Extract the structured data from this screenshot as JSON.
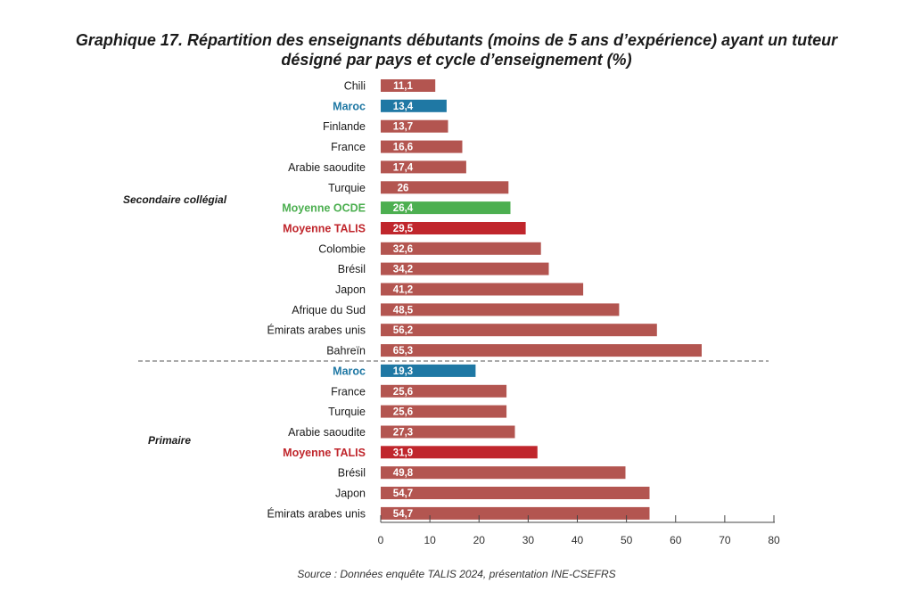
{
  "chart_data": {
    "type": "bar",
    "orientation": "horizontal",
    "title_line1": "Graphique 17. Répartition des enseignants débutants (moins de 5 ans d’expérience) ayant un tuteur",
    "title_line2": "désigné par pays et cycle d’enseignement (%)",
    "source": "Source : Données enquête TALIS 2024, présentation INE-CSEFRS",
    "xlim": [
      0,
      80
    ],
    "xticks": [
      0,
      10,
      20,
      30,
      40,
      50,
      60,
      70,
      80
    ],
    "grid": false,
    "colors": {
      "default": "#b35550",
      "maroc": "#1f78a4",
      "oecd": "#4caf50",
      "talis": "#c0262c",
      "label_default": "#1a1a1a"
    },
    "groups": [
      {
        "name": "Secondaire collégial",
        "bars": [
          {
            "label": "Chili",
            "value": 11.1,
            "value_label": "11,1",
            "kind": "default"
          },
          {
            "label": "Maroc",
            "value": 13.4,
            "value_label": "13,4",
            "kind": "maroc"
          },
          {
            "label": "Finlande",
            "value": 13.7,
            "value_label": "13,7",
            "kind": "default"
          },
          {
            "label": "France",
            "value": 16.6,
            "value_label": "16,6",
            "kind": "default"
          },
          {
            "label": "Arabie saoudite",
            "value": 17.4,
            "value_label": "17,4",
            "kind": "default"
          },
          {
            "label": "Turquie",
            "value": 26,
            "value_label": "26",
            "kind": "default"
          },
          {
            "label": "Moyenne OCDE",
            "value": 26.4,
            "value_label": "26,4",
            "kind": "oecd"
          },
          {
            "label": "Moyenne TALIS",
            "value": 29.5,
            "value_label": "29,5",
            "kind": "talis"
          },
          {
            "label": "Colombie",
            "value": 32.6,
            "value_label": "32,6",
            "kind": "default"
          },
          {
            "label": "Brésil",
            "value": 34.2,
            "value_label": "34,2",
            "kind": "default"
          },
          {
            "label": "Japon",
            "value": 41.2,
            "value_label": "41,2",
            "kind": "default"
          },
          {
            "label": "Afrique du Sud",
            "value": 48.5,
            "value_label": "48,5",
            "kind": "default"
          },
          {
            "label": "Émirats arabes unis",
            "value": 56.2,
            "value_label": "56,2",
            "kind": "default"
          },
          {
            "label": "Bahreïn",
            "value": 65.3,
            "value_label": "65,3",
            "kind": "default"
          }
        ]
      },
      {
        "name": "Primaire",
        "bars": [
          {
            "label": "Maroc",
            "value": 19.3,
            "value_label": "19,3",
            "kind": "maroc"
          },
          {
            "label": "France",
            "value": 25.6,
            "value_label": "25,6",
            "kind": "default"
          },
          {
            "label": "Turquie",
            "value": 25.6,
            "value_label": "25,6",
            "kind": "default"
          },
          {
            "label": "Arabie saoudite",
            "value": 27.3,
            "value_label": "27,3",
            "kind": "default"
          },
          {
            "label": "Moyenne TALIS",
            "value": 31.9,
            "value_label": "31,9",
            "kind": "talis"
          },
          {
            "label": "Brésil",
            "value": 49.8,
            "value_label": "49,8",
            "kind": "default"
          },
          {
            "label": "Japon",
            "value": 54.7,
            "value_label": "54,7",
            "kind": "default"
          },
          {
            "label": "Émirats arabes unis",
            "value": 54.7,
            "value_label": "54,7",
            "kind": "default"
          }
        ]
      }
    ]
  }
}
